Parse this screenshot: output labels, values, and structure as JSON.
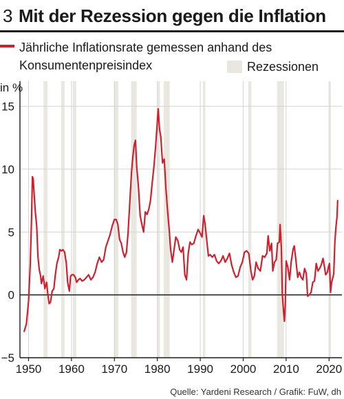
{
  "header": {
    "number": "3",
    "title": "Mit der Rezession gegen die Inflation"
  },
  "legend": {
    "line_label": "Jährliche Inflationsrate gemessen anhand des Konsumentenpreisindex",
    "recession_label": "Rezessionen"
  },
  "source": "Quelle: Yardeni Research / Grafik: FuW, dh",
  "colors": {
    "line": "#d0202e",
    "recession": "#e9e8e0",
    "grid": "#d4d4d4",
    "axis": "#1a1a1a"
  },
  "chart_data": {
    "type": "line",
    "title": "Mit der Rezession gegen die Inflation",
    "ylabel": "in %",
    "xlim": [
      1948.0,
      2023.0
    ],
    "ylim": [
      -5,
      17
    ],
    "x_ticks": [
      1950,
      1960,
      1970,
      1980,
      1990,
      2000,
      2010,
      2020
    ],
    "y_ticks": [
      -5,
      0,
      5,
      10,
      15
    ],
    "grid": {
      "horizontal": true,
      "vertical": true
    },
    "zero_line": true,
    "recessions": [
      [
        1953.5,
        1954.4
      ],
      [
        1957.6,
        1958.4
      ],
      [
        1960.3,
        1961.1
      ],
      [
        1969.9,
        1970.9
      ],
      [
        1973.9,
        1975.2
      ],
      [
        1980.0,
        1980.6
      ],
      [
        1981.5,
        1982.9
      ],
      [
        1990.6,
        1991.2
      ],
      [
        2001.2,
        2001.9
      ],
      [
        2007.9,
        2009.5
      ],
      [
        2020.1,
        2020.4
      ]
    ],
    "series": [
      {
        "name": "Jährliche Inflationsrate gemessen anhand des Konsumentenpreisindex",
        "points": [
          [
            1949.0,
            -2.9
          ],
          [
            1949.5,
            -2.3
          ],
          [
            1950.0,
            -0.5
          ],
          [
            1950.4,
            2.5
          ],
          [
            1950.7,
            6.0
          ],
          [
            1950.9,
            9.4
          ],
          [
            1951.1,
            9.2
          ],
          [
            1951.3,
            8.0
          ],
          [
            1951.6,
            6.5
          ],
          [
            1951.9,
            5.5
          ],
          [
            1952.2,
            3.0
          ],
          [
            1952.5,
            2.0
          ],
          [
            1952.8,
            1.5
          ],
          [
            1953.0,
            0.9
          ],
          [
            1953.4,
            1.5
          ],
          [
            1953.8,
            0.5
          ],
          [
            1954.2,
            1.0
          ],
          [
            1954.5,
            0.0
          ],
          [
            1954.8,
            -0.7
          ],
          [
            1955.1,
            -0.6
          ],
          [
            1955.5,
            0.3
          ],
          [
            1955.9,
            0.5
          ],
          [
            1956.2,
            1.5
          ],
          [
            1956.6,
            2.5
          ],
          [
            1957.0,
            3.0
          ],
          [
            1957.3,
            3.6
          ],
          [
            1957.7,
            3.5
          ],
          [
            1958.0,
            3.6
          ],
          [
            1958.4,
            3.4
          ],
          [
            1958.8,
            2.5
          ],
          [
            1959.1,
            1.0
          ],
          [
            1959.5,
            0.3
          ],
          [
            1959.8,
            1.5
          ],
          [
            1960.1,
            1.6
          ],
          [
            1960.5,
            1.6
          ],
          [
            1960.9,
            1.4
          ],
          [
            1961.2,
            1.0
          ],
          [
            1961.6,
            1.2
          ],
          [
            1962.0,
            1.3
          ],
          [
            1962.5,
            1.1
          ],
          [
            1963.0,
            1.2
          ],
          [
            1963.5,
            1.4
          ],
          [
            1964.0,
            1.6
          ],
          [
            1964.5,
            1.2
          ],
          [
            1965.0,
            1.4
          ],
          [
            1965.5,
            1.8
          ],
          [
            1966.0,
            2.5
          ],
          [
            1966.5,
            3.0
          ],
          [
            1967.0,
            2.6
          ],
          [
            1967.5,
            2.8
          ],
          [
            1968.0,
            3.8
          ],
          [
            1968.5,
            4.3
          ],
          [
            1969.0,
            4.8
          ],
          [
            1969.5,
            5.5
          ],
          [
            1970.0,
            6.0
          ],
          [
            1970.4,
            6.0
          ],
          [
            1970.8,
            5.6
          ],
          [
            1971.2,
            4.4
          ],
          [
            1971.6,
            4.1
          ],
          [
            1972.0,
            3.4
          ],
          [
            1972.4,
            3.0
          ],
          [
            1972.8,
            3.4
          ],
          [
            1973.2,
            5.0
          ],
          [
            1973.6,
            7.4
          ],
          [
            1974.0,
            9.8
          ],
          [
            1974.3,
            11.0
          ],
          [
            1974.6,
            11.9
          ],
          [
            1974.9,
            12.3
          ],
          [
            1975.2,
            10.2
          ],
          [
            1975.6,
            8.6
          ],
          [
            1976.0,
            6.3
          ],
          [
            1976.4,
            5.6
          ],
          [
            1976.8,
            5.0
          ],
          [
            1977.2,
            6.6
          ],
          [
            1977.6,
            6.4
          ],
          [
            1978.0,
            6.8
          ],
          [
            1978.4,
            7.5
          ],
          [
            1978.8,
            8.9
          ],
          [
            1979.2,
            10.2
          ],
          [
            1979.6,
            11.8
          ],
          [
            1980.0,
            13.8
          ],
          [
            1980.2,
            14.8
          ],
          [
            1980.5,
            13.2
          ],
          [
            1980.8,
            12.6
          ],
          [
            1981.2,
            10.5
          ],
          [
            1981.6,
            10.8
          ],
          [
            1982.0,
            8.4
          ],
          [
            1982.4,
            6.6
          ],
          [
            1982.8,
            5.0
          ],
          [
            1983.1,
            3.6
          ],
          [
            1983.5,
            2.6
          ],
          [
            1983.9,
            3.6
          ],
          [
            1984.3,
            4.6
          ],
          [
            1984.8,
            4.3
          ],
          [
            1985.2,
            3.6
          ],
          [
            1985.6,
            3.4
          ],
          [
            1986.0,
            3.8
          ],
          [
            1986.4,
            1.6
          ],
          [
            1986.8,
            1.2
          ],
          [
            1987.2,
            3.3
          ],
          [
            1987.6,
            4.2
          ],
          [
            1988.0,
            4.0
          ],
          [
            1988.5,
            4.1
          ],
          [
            1989.0,
            4.7
          ],
          [
            1989.5,
            5.2
          ],
          [
            1990.0,
            4.9
          ],
          [
            1990.4,
            4.6
          ],
          [
            1990.8,
            6.3
          ],
          [
            1991.1,
            5.7
          ],
          [
            1991.5,
            4.4
          ],
          [
            1991.9,
            3.1
          ],
          [
            1992.3,
            3.2
          ],
          [
            1992.8,
            3.0
          ],
          [
            1993.3,
            3.2
          ],
          [
            1993.8,
            2.7
          ],
          [
            1994.3,
            2.5
          ],
          [
            1994.8,
            2.7
          ],
          [
            1995.3,
            3.1
          ],
          [
            1995.8,
            2.6
          ],
          [
            1996.3,
            2.9
          ],
          [
            1996.8,
            3.3
          ],
          [
            1997.3,
            2.4
          ],
          [
            1997.8,
            1.8
          ],
          [
            1998.3,
            1.4
          ],
          [
            1998.8,
            1.5
          ],
          [
            1999.3,
            2.2
          ],
          [
            1999.8,
            2.6
          ],
          [
            2000.3,
            3.4
          ],
          [
            2000.8,
            3.5
          ],
          [
            2001.3,
            3.3
          ],
          [
            2001.8,
            1.9
          ],
          [
            2002.2,
            1.2
          ],
          [
            2002.6,
            1.5
          ],
          [
            2003.0,
            2.6
          ],
          [
            2003.5,
            2.1
          ],
          [
            2004.0,
            1.9
          ],
          [
            2004.5,
            3.1
          ],
          [
            2005.0,
            3.0
          ],
          [
            2005.5,
            3.3
          ],
          [
            2005.8,
            4.7
          ],
          [
            2006.2,
            3.5
          ],
          [
            2006.6,
            4.1
          ],
          [
            2006.9,
            1.9
          ],
          [
            2007.3,
            2.6
          ],
          [
            2007.7,
            2.8
          ],
          [
            2008.0,
            4.1
          ],
          [
            2008.4,
            4.2
          ],
          [
            2008.6,
            5.6
          ],
          [
            2008.9,
            3.7
          ],
          [
            2009.1,
            0.1
          ],
          [
            2009.4,
            -1.3
          ],
          [
            2009.6,
            -2.1
          ],
          [
            2009.8,
            -0.8
          ],
          [
            2010.0,
            2.7
          ],
          [
            2010.4,
            2.2
          ],
          [
            2010.8,
            1.2
          ],
          [
            2011.2,
            2.7
          ],
          [
            2011.6,
            3.6
          ],
          [
            2011.9,
            3.9
          ],
          [
            2012.3,
            2.7
          ],
          [
            2012.7,
            1.4
          ],
          [
            2013.1,
            1.8
          ],
          [
            2013.5,
            1.4
          ],
          [
            2013.9,
            1.2
          ],
          [
            2014.3,
            2.1
          ],
          [
            2014.7,
            1.7
          ],
          [
            2015.0,
            -0.1
          ],
          [
            2015.4,
            0.0
          ],
          [
            2015.8,
            0.2
          ],
          [
            2016.2,
            1.0
          ],
          [
            2016.6,
            1.1
          ],
          [
            2017.0,
            2.5
          ],
          [
            2017.4,
            1.9
          ],
          [
            2017.8,
            2.1
          ],
          [
            2018.2,
            2.4
          ],
          [
            2018.6,
            2.9
          ],
          [
            2018.9,
            2.3
          ],
          [
            2019.2,
            1.6
          ],
          [
            2019.6,
            1.8
          ],
          [
            2019.9,
            2.3
          ],
          [
            2020.1,
            2.5
          ],
          [
            2020.35,
            0.2
          ],
          [
            2020.6,
            1.0
          ],
          [
            2020.9,
            1.4
          ],
          [
            2021.1,
            1.7
          ],
          [
            2021.35,
            4.2
          ],
          [
            2021.6,
            5.4
          ],
          [
            2021.85,
            6.2
          ],
          [
            2022.0,
            7.5
          ]
        ]
      }
    ]
  }
}
